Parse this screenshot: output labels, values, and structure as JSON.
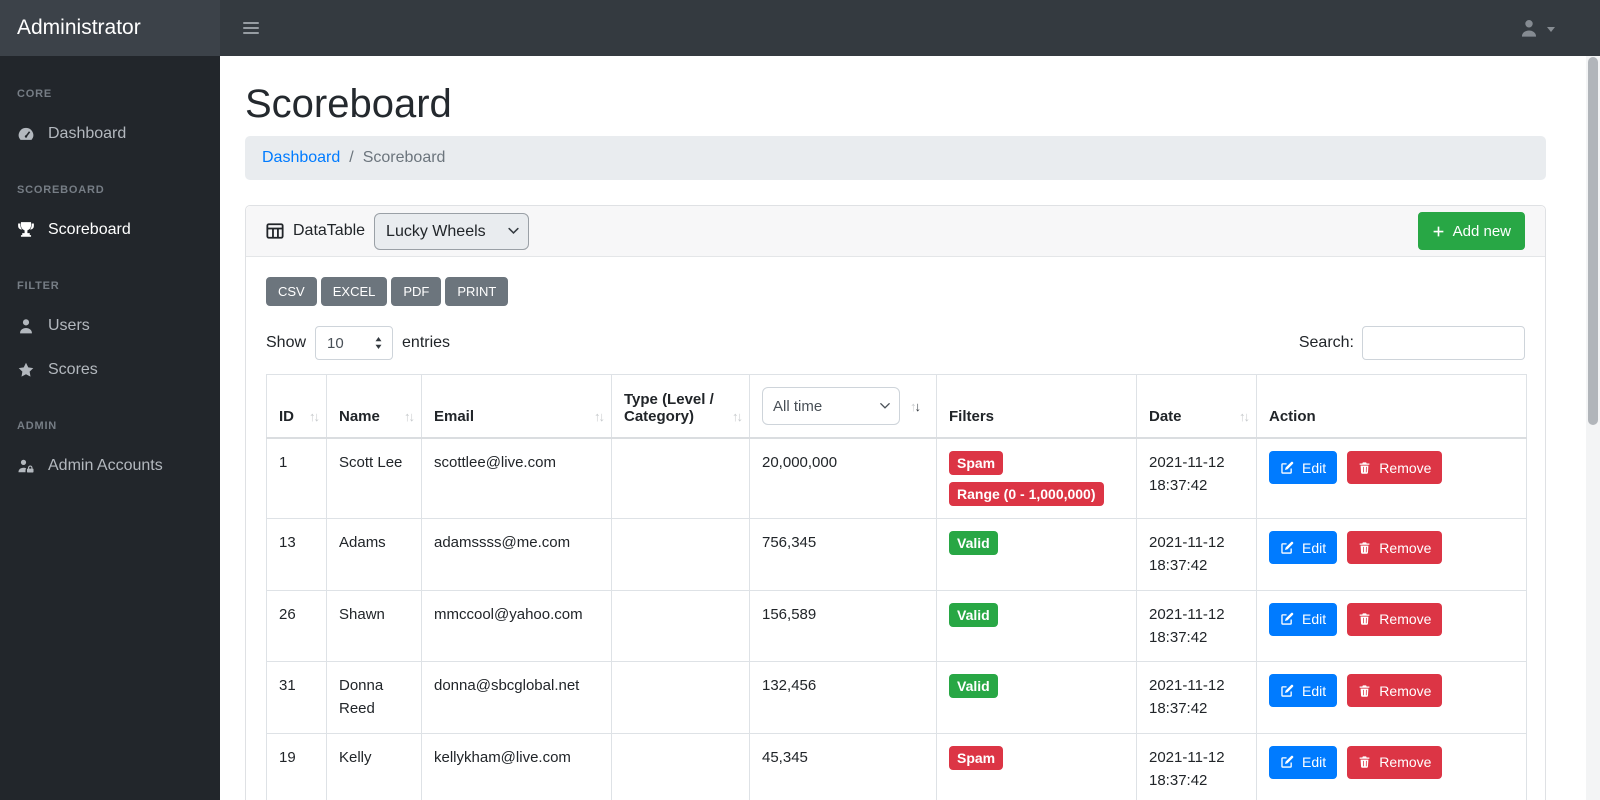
{
  "navbar": {
    "brand": "Administrator"
  },
  "sidebar": {
    "sections": [
      {
        "header": "CORE",
        "items": [
          {
            "label": "Dashboard"
          }
        ]
      },
      {
        "header": "SCOREBOARD",
        "items": [
          {
            "label": "Scoreboard"
          }
        ]
      },
      {
        "header": "FILTER",
        "items": [
          {
            "label": "Users"
          },
          {
            "label": "Scores"
          }
        ]
      },
      {
        "header": "ADMIN",
        "items": [
          {
            "label": "Admin Accounts"
          }
        ]
      }
    ]
  },
  "page": {
    "title": "Scoreboard",
    "breadcrumb": {
      "link": "Dashboard",
      "separator": "/",
      "current": "Scoreboard"
    }
  },
  "card": {
    "header": {
      "label": "DataTable",
      "table_select_value": "Lucky Wheels",
      "add_button_label": "Add new"
    },
    "export_buttons": [
      "CSV",
      "EXCEL",
      "PDF",
      "PRINT"
    ],
    "length_control": {
      "prefix": "Show",
      "value": "10",
      "suffix": "entries"
    },
    "search": {
      "label": "Search:",
      "value": ""
    }
  },
  "table": {
    "columns": {
      "id": "ID",
      "name": "Name",
      "email": "Email",
      "type": "Type (Level / Category)",
      "score_filter_value": "All time",
      "filters": "Filters",
      "date": "Date",
      "action": "Action"
    },
    "sort_glyphs": {
      "up": "↑",
      "down": "↓"
    },
    "actions": {
      "edit": "Edit",
      "remove": "Remove"
    },
    "rows": [
      {
        "id": "1",
        "name": "Scott Lee",
        "email": "scottlee@live.com",
        "type": "",
        "score": "20,000,000",
        "badges": [
          {
            "text": "Spam",
            "variant": "danger"
          },
          {
            "text": "Range (0 - 1,000,000)",
            "variant": "danger"
          }
        ],
        "date": "2021-11-12 18:37:42"
      },
      {
        "id": "13",
        "name": "Adams",
        "email": "adamssss@me.com",
        "type": "",
        "score": "756,345",
        "badges": [
          {
            "text": "Valid",
            "variant": "success"
          }
        ],
        "date": "2021-11-12 18:37:42"
      },
      {
        "id": "26",
        "name": "Shawn",
        "email": "mmccool@yahoo.com",
        "type": "",
        "score": "156,589",
        "badges": [
          {
            "text": "Valid",
            "variant": "success"
          }
        ],
        "date": "2021-11-12 18:37:42"
      },
      {
        "id": "31",
        "name": "Donna Reed",
        "email": "donna@sbcglobal.net",
        "type": "",
        "score": "132,456",
        "badges": [
          {
            "text": "Valid",
            "variant": "success"
          }
        ],
        "date": "2021-11-12 18:37:42"
      },
      {
        "id": "19",
        "name": "Kelly",
        "email": "kellykham@live.com",
        "type": "",
        "score": "45,345",
        "badges": [
          {
            "text": "Spam",
            "variant": "danger"
          }
        ],
        "date": "2021-11-12 18:37:42"
      }
    ]
  },
  "colors": {
    "navbar": "#343a40",
    "sidebar": "#22262b",
    "success": "#28a745",
    "primary": "#007bff",
    "danger": "#dc3545",
    "secondary": "#6c757d"
  }
}
